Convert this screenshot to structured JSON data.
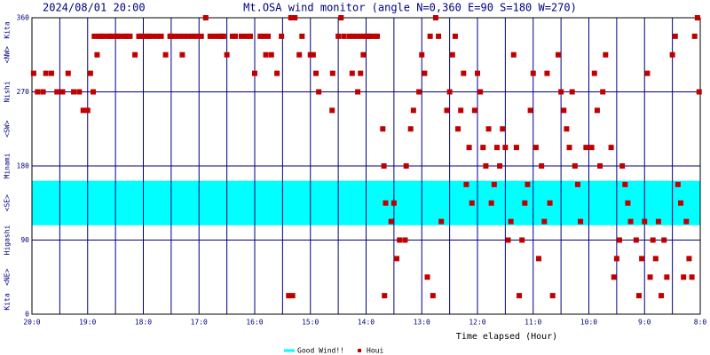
{
  "chart_data": {
    "type": "scatter",
    "timestamp": "2024/08/01 20:00",
    "title": "Mt.OSA wind monitor (angle N=0,360 E=90 S=180 W=270)",
    "x_label": "Time elapsed (Hour)",
    "direction_labels": [
      {
        "value": 0,
        "label": "Kita"
      },
      {
        "value": 45,
        "label": "<NE>"
      },
      {
        "value": 90,
        "label": "Higashi"
      },
      {
        "value": 135,
        "label": "<SE>"
      },
      {
        "value": 180,
        "label": "Minami"
      },
      {
        "value": 225,
        "label": "<SW>"
      },
      {
        "value": 270,
        "label": "Nishi"
      },
      {
        "value": 315,
        "label": "<NW>"
      },
      {
        "value": 360,
        "label": "Kita"
      }
    ],
    "xlim": [
      20,
      8
    ],
    "xticks": [
      {
        "value": 20,
        "label": "20:0"
      },
      {
        "value": 19,
        "label": "19:0"
      },
      {
        "value": 18,
        "label": "18:0"
      },
      {
        "value": 17,
        "label": "17:0"
      },
      {
        "value": 16,
        "label": "16:0"
      },
      {
        "value": 15,
        "label": "15:0"
      },
      {
        "value": 14,
        "label": "14:0"
      },
      {
        "value": 13,
        "label": "13:0"
      },
      {
        "value": 12,
        "label": "12:0"
      },
      {
        "value": 11,
        "label": "11:0"
      },
      {
        "value": 10,
        "label": "10:0"
      },
      {
        "value": 9,
        "label": "9:0"
      },
      {
        "value": 8,
        "label": "8:0"
      }
    ],
    "x_minor_grid": [
      19.5,
      18.5,
      17.5,
      16.5,
      15.5,
      14.5,
      13.5,
      12.5,
      11.5,
      10.5,
      9.5,
      8.5
    ],
    "ylim": [
      0,
      360
    ],
    "yticks": [
      0,
      90,
      180,
      270,
      360
    ],
    "grid": true,
    "good_wind": {
      "name": "Good Wind!!",
      "range": [
        108,
        162
      ],
      "color": "#00ffff"
    },
    "series": [
      {
        "name": "Houi",
        "color": "#c00000",
        "x": [
          19.97,
          19.9,
          19.8,
          19.75,
          19.65,
          19.55,
          19.45,
          19.35,
          19.25,
          19.15,
          19.08,
          19.0,
          18.95,
          18.9,
          18.83,
          18.15,
          17.6,
          17.3,
          16.88,
          16.5,
          16.0,
          15.8,
          15.7,
          15.6,
          15.39,
          15.35,
          15.28,
          15.32,
          15.2,
          15.0,
          14.95,
          14.9,
          14.85,
          14.61,
          14.6,
          14.45,
          14.25,
          14.15,
          14.1,
          14.05,
          13.67,
          13.7,
          13.68,
          13.65,
          13.55,
          13.5,
          13.45,
          13.4,
          13.3,
          13.28,
          13.2,
          13.15,
          13.05,
          13.0,
          12.95,
          12.9,
          12.85,
          12.8,
          12.75,
          12.7,
          12.65,
          12.55,
          12.5,
          12.45,
          12.4,
          12.35,
          12.3,
          12.25,
          12.2,
          12.15,
          12.1,
          12.05,
          12.0,
          11.95,
          11.9,
          11.85,
          11.8,
          11.75,
          11.7,
          11.65,
          11.6,
          11.55,
          11.5,
          11.45,
          11.4,
          11.35,
          11.3,
          11.25,
          11.2,
          11.15,
          11.1,
          11.05,
          11.0,
          10.95,
          10.9,
          10.85,
          10.8,
          10.75,
          10.7,
          10.65,
          10.55,
          10.5,
          10.45,
          10.4,
          10.35,
          10.3,
          10.25,
          10.2,
          10.15,
          10.05,
          9.95,
          9.9,
          9.85,
          9.8,
          9.75,
          9.7,
          9.6,
          9.55,
          9.5,
          9.45,
          9.4,
          9.35,
          9.3,
          9.25,
          9.15,
          9.1,
          9.05,
          9.0,
          8.95,
          8.9,
          8.85,
          8.8,
          8.75,
          8.7,
          8.65,
          8.6,
          8.5,
          8.45,
          8.4,
          8.35,
          8.3,
          8.25,
          8.2,
          8.15,
          8.1,
          8.05,
          8.02,
          18.88,
          18.8,
          18.75,
          18.72,
          18.64,
          18.6,
          18.56,
          18.48,
          18.45,
          18.4,
          18.32,
          18.3,
          18.24,
          18.08,
          18.05,
          18.0,
          17.92,
          17.9,
          17.84,
          17.75,
          17.68,
          17.52,
          17.5,
          17.44,
          17.36,
          17.28,
          17.2,
          17.12,
          17.05,
          16.96,
          16.8,
          16.72,
          16.64,
          16.6,
          16.56,
          16.4,
          16.35,
          16.24,
          16.15,
          16.08,
          15.9,
          15.84,
          15.76,
          15.52,
          15.15,
          14.5,
          14.4,
          14.3,
          14.24,
          14.16,
          14.08,
          14.0,
          13.95,
          13.92,
          13.84,
          13.8
        ],
        "values": [
          292.5,
          270,
          270,
          292.5,
          292.5,
          270,
          270,
          292.5,
          270,
          270,
          247.5,
          247.5,
          292.5,
          270,
          315,
          315,
          315,
          315,
          360,
          315,
          292.5,
          315,
          315,
          292.5,
          22.5,
          360,
          360,
          22.5,
          315,
          315,
          315,
          292.5,
          270,
          247.5,
          292.5,
          360,
          292.5,
          270,
          292.5,
          315,
          22.5,
          225,
          180,
          135,
          112.5,
          135,
          67.5,
          90,
          90,
          180,
          225,
          247.5,
          270,
          315,
          292.5,
          45,
          337.5,
          22.5,
          360,
          337.5,
          112.5,
          247.5,
          270,
          315,
          337.5,
          225,
          247.5,
          292.5,
          157.5,
          202.5,
          135,
          247.5,
          292.5,
          270,
          202.5,
          180,
          225,
          135,
          157.5,
          202.5,
          180,
          225,
          202.5,
          90,
          112.5,
          315,
          202.5,
          22.5,
          90,
          135,
          157.5,
          247.5,
          292.5,
          202.5,
          67.5,
          180,
          112.5,
          292.5,
          135,
          22.5,
          315,
          270,
          247.5,
          225,
          202.5,
          270,
          180,
          157.5,
          112.5,
          202.5,
          202.5,
          292.5,
          247.5,
          180,
          270,
          315,
          202.5,
          45,
          67.5,
          90,
          180,
          157.5,
          135,
          112.5,
          90,
          22.5,
          67.5,
          112.5,
          292.5,
          45,
          90,
          67.5,
          112.5,
          22.5,
          90,
          45,
          315,
          337.5,
          157.5,
          135,
          45,
          112.5,
          67.5,
          45,
          337.5,
          360,
          270,
          337.5,
          337.5,
          337.5,
          337.5,
          337.5,
          337.5,
          337.5,
          337.5,
          337.5,
          337.5,
          337.5,
          337.5,
          337.5,
          337.5,
          337.5,
          337.5,
          337.5,
          337.5,
          337.5,
          337.5,
          337.5,
          337.5,
          337.5,
          337.5,
          337.5,
          337.5,
          337.5,
          337.5,
          337.5,
          337.5,
          337.5,
          337.5,
          337.5,
          337.5,
          337.5,
          337.5,
          337.5,
          337.5,
          337.5,
          337.5,
          337.5,
          337.5,
          337.5,
          337.5,
          337.5,
          337.5,
          337.5,
          337.5,
          337.5,
          337.5,
          337.5,
          337.5,
          337.5,
          337.5,
          337.5,
          337.5
        ]
      }
    ]
  }
}
